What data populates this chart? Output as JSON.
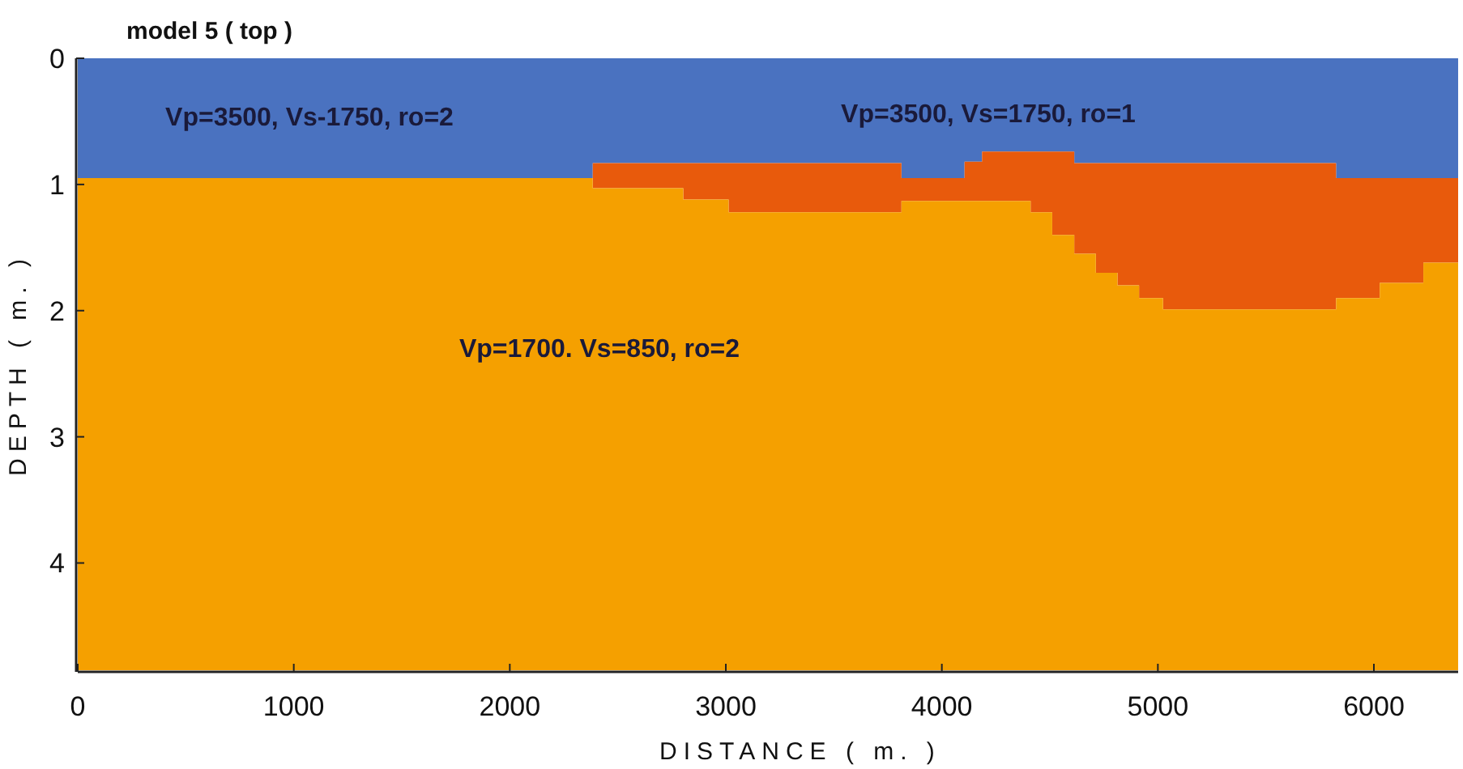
{
  "chart_data": {
    "type": "area",
    "stacked": true,
    "title": "model 5 ( top )",
    "xlabel": "DISTANCE ( m. )",
    "ylabel": "DEPTH ( m. )",
    "x": [
      0,
      2384,
      2803,
      3013,
      3813,
      4105,
      4186,
      4411,
      4511,
      4613,
      4713,
      4813,
      4913,
      5024,
      5622,
      5825,
      5907,
      6027,
      6229,
      6390
    ],
    "series": [
      {
        "color": "#4a72c0",
        "values": [
          0.95,
          0.83,
          0.83,
          0.83,
          0.95,
          0.82,
          0.74,
          0.74,
          0.74,
          0.83,
          0.83,
          0.83,
          0.83,
          0.83,
          0.83,
          0.95,
          0.95,
          0.95,
          0.95,
          0.95
        ]
      },
      {
        "color": "#e85a0c",
        "values": [
          0,
          0.2,
          0.29,
          0.39,
          0.18,
          0.31,
          0.39,
          0.48,
          0.66,
          0.72,
          0.87,
          0.97,
          1.07,
          1.16,
          1.16,
          0.95,
          0.95,
          0.83,
          0.67,
          0.67
        ]
      },
      {
        "color": "#f5a000",
        "values": [
          3.9,
          3.82,
          3.73,
          3.63,
          3.72,
          3.72,
          3.72,
          3.63,
          3.45,
          3.3,
          3.15,
          3.05,
          2.95,
          2.86,
          2.86,
          2.95,
          2.95,
          3.07,
          3.23,
          3.23
        ]
      }
    ],
    "xlim": [
      0,
      6390
    ],
    "ylim": [
      4.85,
      0
    ],
    "xticks": [
      0,
      1000,
      2000,
      3000,
      4000,
      5000,
      6000
    ],
    "yticks": [
      0,
      1,
      2,
      3,
      4
    ],
    "annotations": [
      "Vp=3500, Vs-1750, ro=2",
      "Vp=3500, Vs=1750, ro=1",
      "Vp=1700. Vs=850, ro=2"
    ],
    "grid": false
  }
}
